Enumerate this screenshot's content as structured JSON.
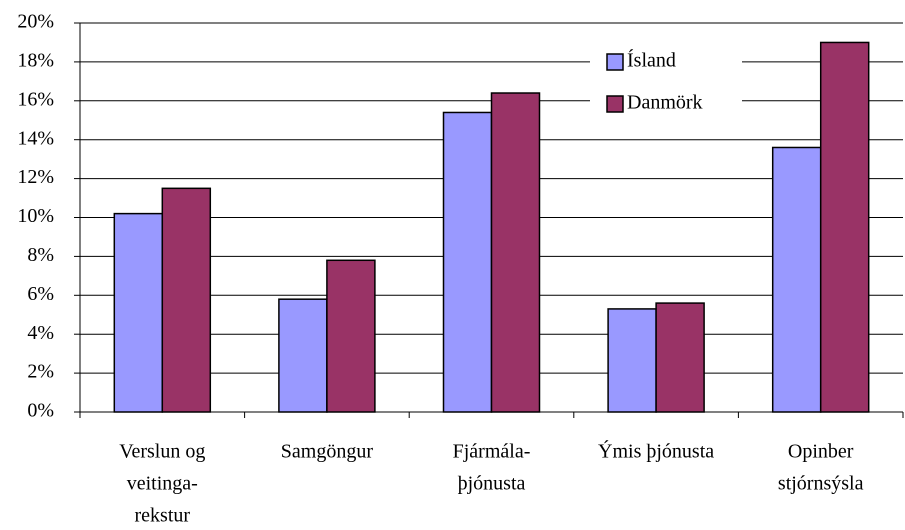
{
  "chart_data": {
    "type": "bar",
    "categories": [
      [
        "Verslun og",
        "veitinga-",
        "rekstur"
      ],
      [
        "Samgöngur"
      ],
      [
        "Fjármála-",
        "þjónusta"
      ],
      [
        "Ýmis þjónusta"
      ],
      [
        "Opinber",
        "stjórnsýsla"
      ]
    ],
    "series": [
      {
        "name": "Ísland",
        "color": "#9999ff",
        "values": [
          10.2,
          5.8,
          15.4,
          5.3,
          13.6
        ]
      },
      {
        "name": "Danmörk",
        "color": "#993366",
        "values": [
          11.5,
          7.8,
          16.4,
          5.6,
          19.0
        ]
      }
    ],
    "ylim": [
      0,
      20
    ],
    "yticks": [
      {
        "value": 0,
        "label": "0%"
      },
      {
        "value": 2,
        "label": "2%"
      },
      {
        "value": 4,
        "label": "4%"
      },
      {
        "value": 6,
        "label": "6%"
      },
      {
        "value": 8,
        "label": "8%"
      },
      {
        "value": 10,
        "label": "10%"
      },
      {
        "value": 12,
        "label": "12%"
      },
      {
        "value": 14,
        "label": "14%"
      },
      {
        "value": 16,
        "label": "16%"
      },
      {
        "value": 18,
        "label": "18%"
      },
      {
        "value": 20,
        "label": "20%"
      }
    ],
    "grid": true,
    "legend": "upper right"
  }
}
